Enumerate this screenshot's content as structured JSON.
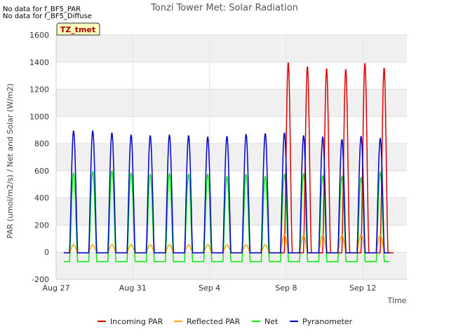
{
  "notes": [
    "No data for f_BF5_PAR",
    "No data for f_BF5_Diffuse"
  ],
  "badge": "TZ_tmet",
  "chart_data": {
    "type": "line",
    "title": "Tonzi Tower Met: Solar Radiation",
    "xlabel": "Time",
    "ylabel": "PAR (umol/m2/s) / Net and Solar (W/m2)",
    "ylim": [
      -200,
      1600
    ],
    "xlim": [
      0,
      18.3
    ],
    "yticks": [
      -200,
      0,
      200,
      400,
      600,
      800,
      1000,
      1200,
      1400,
      1600
    ],
    "xticks": [
      {
        "value": 0,
        "label": "Aug 27"
      },
      {
        "value": 4,
        "label": "Aug 31"
      },
      {
        "value": 8,
        "label": "Sep 4"
      },
      {
        "value": 12,
        "label": "Sep 8"
      },
      {
        "value": 16,
        "label": "Sep 12"
      }
    ],
    "grid": true,
    "series": [
      {
        "name": "Incoming PAR",
        "color": "#dd0000",
        "day_start": 11.6,
        "daily_peaks": [
          1400,
          1370,
          1355,
          1350,
          1395,
          1360
        ]
      },
      {
        "name": "Reflected PAR",
        "color": "#ffa500",
        "daily_peaks": [
          55,
          55,
          55,
          55,
          55,
          55,
          55,
          55,
          55,
          55,
          55,
          130,
          125,
          125,
          125,
          130,
          125
        ]
      },
      {
        "name": "Net",
        "color": "#00ee00",
        "daily_peaks": [
          585,
          595,
          600,
          585,
          575,
          580,
          575,
          575,
          560,
          575,
          560,
          575,
          580,
          565,
          560,
          550,
          590
        ],
        "night_value": -70
      },
      {
        "name": "Pyranometer",
        "color": "#0000cc",
        "daily_peaks": [
          895,
          895,
          880,
          865,
          860,
          865,
          860,
          850,
          855,
          870,
          875,
          880,
          860,
          850,
          830,
          855,
          840
        ]
      }
    ]
  },
  "legend_entries": [
    "Incoming PAR",
    "Reflected PAR",
    "Net",
    "Pyranometer"
  ]
}
